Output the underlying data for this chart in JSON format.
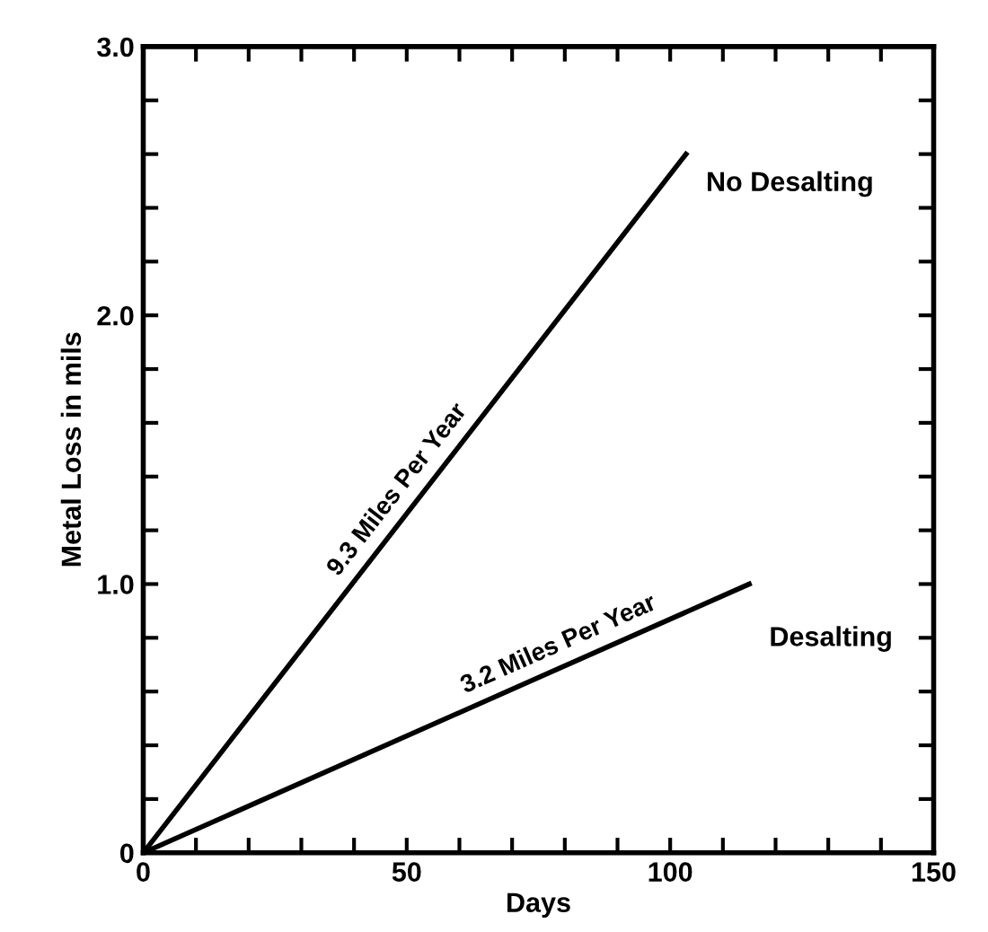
{
  "chart_data": {
    "type": "line",
    "xlabel": "Days",
    "ylabel": "Metal Loss in mils",
    "series": [
      {
        "name": "No Desalting",
        "color": "#000000",
        "x": [
          0,
          103
        ],
        "values": [
          0,
          2.6
        ]
      },
      {
        "name": "Desalting",
        "color": "#000000",
        "x": [
          0,
          115
        ],
        "values": [
          0,
          1.0
        ]
      }
    ],
    "annotations": [
      "9.3 Miles Per Year",
      "3.2 Miles Per Year"
    ],
    "xlim": [
      0,
      150
    ],
    "ylim": [
      0,
      3.0
    ],
    "xticks": [
      0,
      {
        "value": 10,
        "label": null
      },
      {
        "value": 20,
        "label": null
      },
      {
        "value": 30,
        "label": null
      },
      {
        "value": 40,
        "label": null
      },
      50,
      {
        "value": 60,
        "label": null
      },
      {
        "value": 70,
        "label": null
      },
      {
        "value": 80,
        "label": null
      },
      {
        "value": 90,
        "label": null
      },
      100,
      {
        "value": 110,
        "label": null
      },
      {
        "value": 120,
        "label": null
      },
      {
        "value": 130,
        "label": null
      },
      {
        "value": 140,
        "label": null
      },
      150
    ],
    "yticks": [
      0,
      {
        "value": 0.2,
        "label": null
      },
      {
        "value": 0.4,
        "label": null
      },
      {
        "value": 0.6,
        "label": null
      },
      {
        "value": 0.8,
        "label": null
      },
      {
        "value": 1.0,
        "label": "1.0"
      },
      {
        "value": 1.2,
        "label": null
      },
      {
        "value": 1.4,
        "label": null
      },
      {
        "value": 1.6,
        "label": null
      },
      {
        "value": 1.8,
        "label": null
      },
      {
        "value": 2.0,
        "label": "2.0"
      },
      {
        "value": 2.2,
        "label": null
      },
      {
        "value": 2.4,
        "label": null
      },
      {
        "value": 2.6,
        "label": null
      },
      {
        "value": 2.8,
        "label": null
      },
      {
        "value": 3.0,
        "label": "3.0"
      }
    ],
    "grid": false,
    "legend": "right",
    "marker": "none",
    "line_style": "solid"
  }
}
